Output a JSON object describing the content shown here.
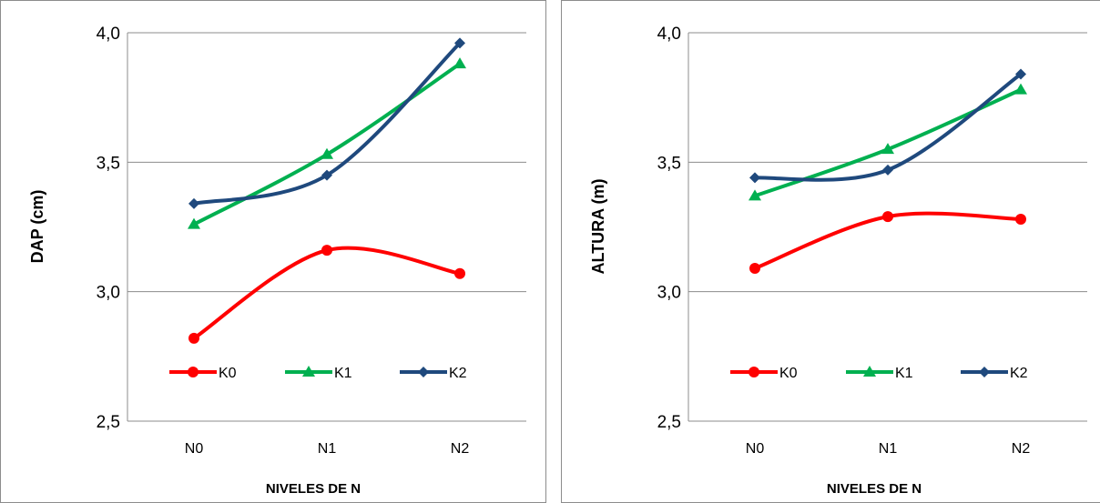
{
  "chart_data": [
    {
      "type": "line",
      "categories": [
        "N0",
        "N1",
        "N2"
      ],
      "series": [
        {
          "name": "K0",
          "color": "#ff0000",
          "marker": "circle",
          "values": [
            2.82,
            3.16,
            3.07
          ]
        },
        {
          "name": "K1",
          "color": "#00b050",
          "marker": "triangle",
          "values": [
            3.26,
            3.53,
            3.88
          ]
        },
        {
          "name": "K2",
          "color": "#1f497d",
          "marker": "diamond",
          "values": [
            3.34,
            3.45,
            3.96
          ]
        }
      ],
      "ylabel": "DAP (cm)",
      "xlabel": "NIVELES DE N",
      "ylim": [
        2.5,
        4.0
      ],
      "yticks": [
        "2,5",
        "3,0",
        "3,5",
        "4,0"
      ],
      "ytick_values": [
        2.5,
        3.0,
        3.5,
        4.0
      ],
      "grid": true,
      "legend": "inside-lower"
    },
    {
      "type": "line",
      "categories": [
        "N0",
        "N1",
        "N2"
      ],
      "series": [
        {
          "name": "K0",
          "color": "#ff0000",
          "marker": "circle",
          "values": [
            3.09,
            3.29,
            3.28
          ]
        },
        {
          "name": "K1",
          "color": "#00b050",
          "marker": "triangle",
          "values": [
            3.37,
            3.55,
            3.78
          ]
        },
        {
          "name": "K2",
          "color": "#1f497d",
          "marker": "diamond",
          "values": [
            3.44,
            3.47,
            3.84
          ]
        }
      ],
      "ylabel": "ALTURA (m)",
      "xlabel": "NIVELES DE N",
      "ylim": [
        2.5,
        4.0
      ],
      "yticks": [
        "2,5",
        "3,0",
        "3,5",
        "4,0"
      ],
      "ytick_values": [
        2.5,
        3.0,
        3.5,
        4.0
      ],
      "grid": true,
      "legend": "inside-lower"
    }
  ]
}
